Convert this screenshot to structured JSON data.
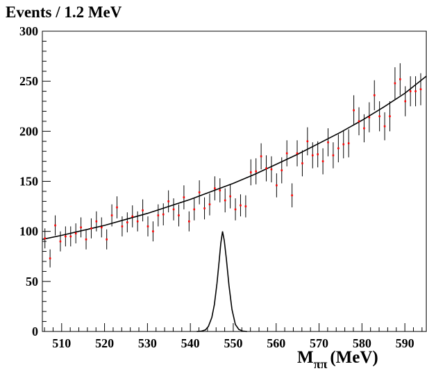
{
  "chart_data": {
    "type": "scatter",
    "y_title": "Events / 1.2 MeV",
    "x_title_main": "M",
    "x_title_sub": "ππ",
    "x_title_unit": "(MeV)",
    "xlim": [
      505.5,
      595
    ],
    "ylim": [
      0,
      300
    ],
    "x_ticks": [
      510,
      520,
      530,
      540,
      550,
      560,
      570,
      580,
      590
    ],
    "y_ticks": [
      0,
      50,
      100,
      150,
      200,
      250,
      300
    ],
    "grid": false,
    "colors": {
      "points": "#ff0000",
      "error_bars": "#000000",
      "curves": "#000000"
    },
    "series": [
      {
        "type": "points_with_errors",
        "x": [
          506.1,
          507.3,
          508.5,
          509.7,
          510.9,
          512.1,
          513.3,
          514.5,
          515.7,
          516.9,
          518.1,
          519.3,
          520.5,
          521.7,
          522.9,
          524.1,
          525.3,
          526.5,
          527.7,
          528.9,
          530.1,
          531.3,
          532.5,
          533.7,
          534.9,
          536.1,
          537.3,
          538.5,
          539.7,
          540.9,
          542.1,
          543.3,
          544.5,
          545.7,
          546.9,
          548.1,
          549.3,
          550.5,
          551.7,
          552.9,
          554.1,
          555.3,
          556.5,
          557.7,
          558.9,
          560.1,
          561.3,
          562.5,
          563.7,
          564.9,
          566.1,
          567.3,
          568.5,
          569.7,
          570.9,
          572.1,
          573.3,
          574.5,
          575.7,
          576.9,
          578.1,
          579.3,
          580.5,
          581.7,
          582.9,
          584.1,
          585.3,
          586.5,
          587.7,
          588.9,
          590.1,
          591.3,
          592.5,
          593.7
        ],
        "y": [
          93,
          73,
          106,
          90,
          95,
          95,
          98,
          104,
          92,
          103,
          110,
          104,
          92,
          116,
          124,
          105,
          109,
          115,
          110,
          121,
          105,
          100,
          116,
          117,
          130,
          122,
          116,
          134,
          110,
          122,
          139,
          123,
          127,
          143,
          141,
          131,
          135,
          122,
          126,
          125,
          159,
          160,
          175,
          163,
          162,
          146,
          161,
          178,
          136,
          178,
          168,
          190,
          176,
          177,
          170,
          189,
          176,
          183,
          187,
          188,
          221,
          210,
          203,
          214,
          236,
          215,
          205,
          215,
          248,
          252,
          230,
          240,
          240,
          242
        ],
        "errors": [
          10,
          9,
          10,
          10,
          10,
          10,
          10,
          10,
          10,
          10,
          10,
          10,
          10,
          11,
          11,
          10,
          10,
          11,
          10,
          11,
          10,
          10,
          11,
          11,
          11,
          11,
          11,
          12,
          10,
          11,
          12,
          11,
          11,
          12,
          12,
          12,
          12,
          11,
          11,
          11,
          13,
          13,
          13,
          13,
          13,
          12,
          13,
          13,
          12,
          13,
          13,
          14,
          13,
          13,
          13,
          14,
          13,
          14,
          14,
          14,
          15,
          14,
          14,
          15,
          15,
          15,
          14,
          15,
          16,
          16,
          15,
          15,
          15,
          16
        ]
      },
      {
        "type": "background_fit",
        "x": [
          505.5,
          510,
          515,
          520,
          525,
          530,
          535,
          540,
          545,
          550,
          555,
          560,
          565,
          570,
          575,
          580,
          585,
          590,
          595
        ],
        "y": [
          92,
          96,
          101,
          106,
          112,
          118,
          125,
          132,
          140,
          148,
          157,
          167,
          177,
          188,
          199,
          211,
          224,
          238,
          255
        ]
      },
      {
        "type": "signal_peak",
        "x": [
          541.5,
          542.5,
          543.5,
          544.2,
          545,
          545.6,
          546.2,
          546.7,
          547.1,
          547.5,
          547.9,
          548.4,
          549,
          549.7,
          550.5,
          551.3,
          552.2,
          553.2
        ],
        "y": [
          0,
          0.3,
          1.5,
          5,
          14,
          27,
          48,
          70,
          88,
          100,
          91,
          72,
          46,
          22,
          7,
          2,
          0.4,
          0
        ]
      }
    ]
  }
}
